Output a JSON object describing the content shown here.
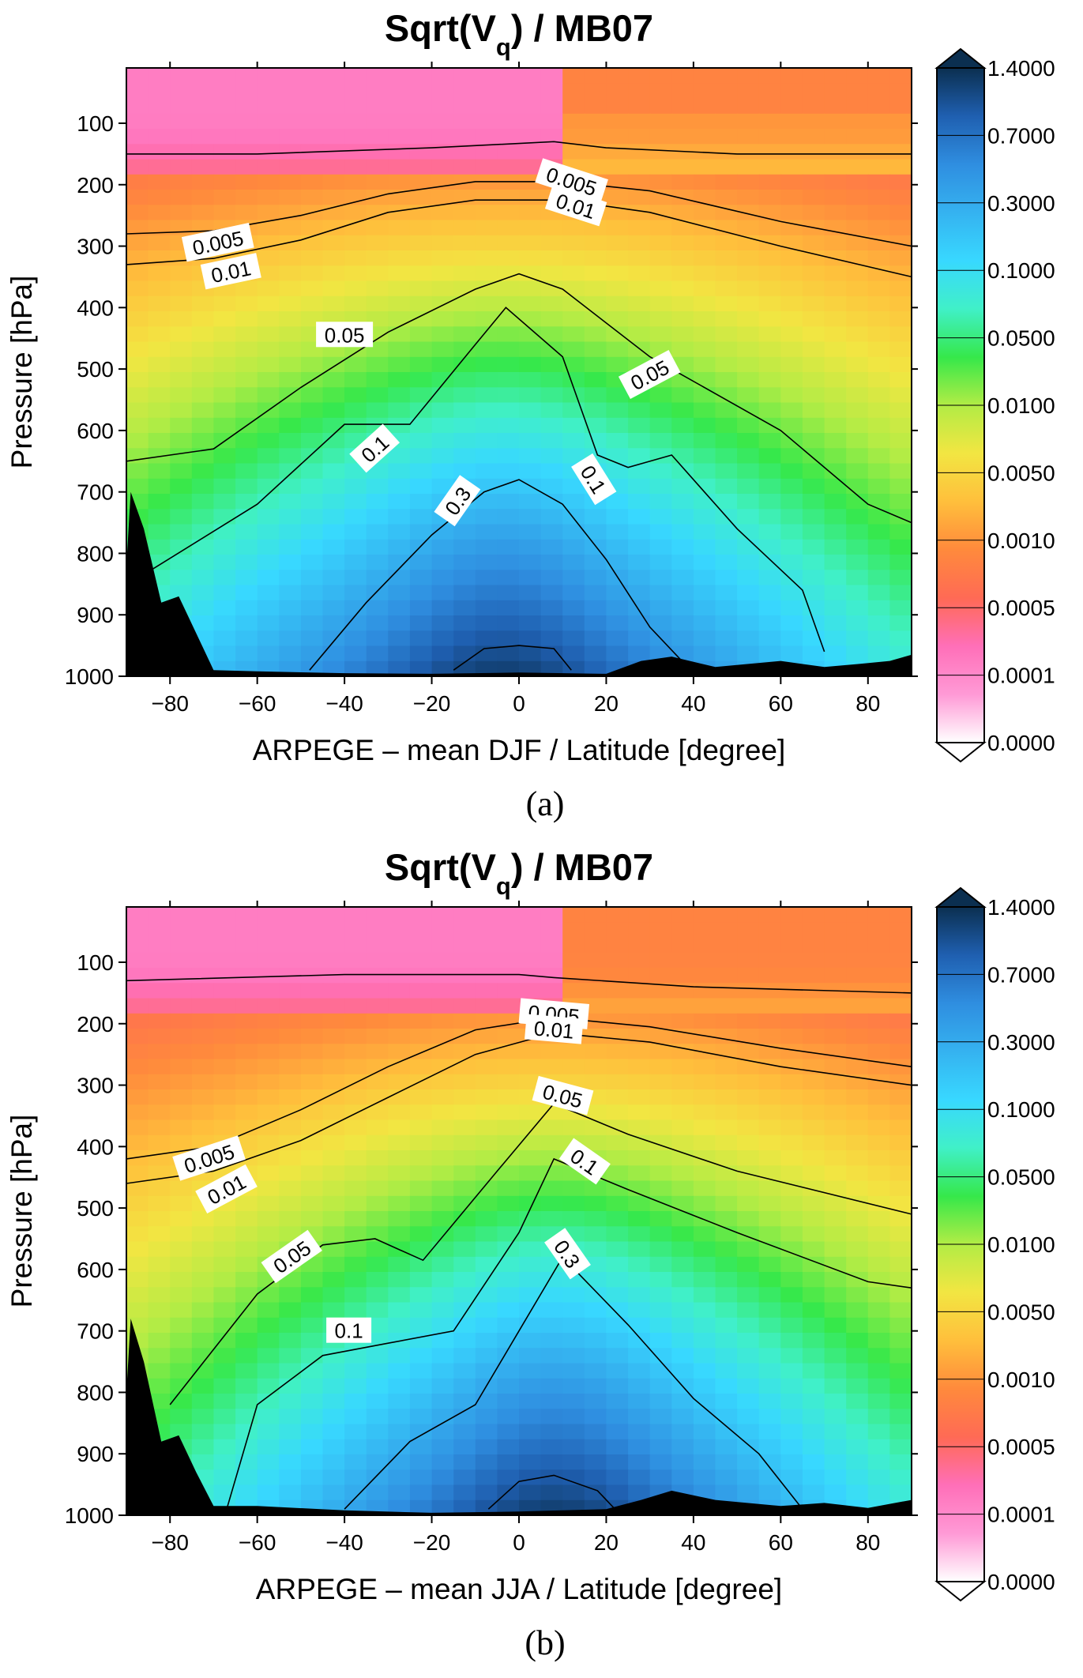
{
  "colors": {
    "scale": [
      "#ffffff",
      "#ff9ad6",
      "#ff6fb8",
      "#ff6a55",
      "#ff8a3c",
      "#ffbf3c",
      "#f2e642",
      "#b2ec45",
      "#36e84a",
      "#40f0c8",
      "#38d8ff",
      "#35b2f0",
      "#2f8ee0",
      "#1f5fb0",
      "#0b2f50"
    ],
    "terrain": "#000000",
    "contour": "#000000"
  },
  "chart_data": [
    {
      "id": "a",
      "type": "heatmap",
      "title_main": "Sqrt(V",
      "title_sub": "q",
      "title_tail": ") / MB07",
      "xlabel": "ARPEGE – mean DJF / Latitude [degree]",
      "ylabel": "Pressure [hPa]",
      "caption": "(a)",
      "xlim": [
        -90,
        90
      ],
      "ylim": [
        1000,
        10
      ],
      "x_ticks": [
        -80,
        -60,
        -40,
        -20,
        0,
        20,
        40,
        60,
        80
      ],
      "x_tick_labels": [
        "−80",
        "−60",
        "−40",
        "−20",
        "0",
        "20",
        "40",
        "60",
        "80"
      ],
      "y_ticks": [
        100,
        200,
        300,
        400,
        500,
        600,
        700,
        800,
        900,
        1000
      ],
      "y_tick_labels": [
        "100",
        "200",
        "300",
        "400",
        "500",
        "600",
        "700",
        "800",
        "900",
        "1000"
      ],
      "colorbar_levels": [
        "0.0000",
        "0.0001",
        "0.0005",
        "0.0010",
        "0.0050",
        "0.0100",
        "0.0500",
        "0.1000",
        "0.3000",
        "0.7000",
        "1.4000"
      ],
      "contour_labels": [
        {
          "text": "0.005",
          "lat": -69,
          "p": 295,
          "angle": -12
        },
        {
          "text": "0.01",
          "lat": -66,
          "p": 342,
          "angle": -12
        },
        {
          "text": "0.005",
          "lat": 12,
          "p": 195,
          "angle": 18
        },
        {
          "text": "0.01",
          "lat": 13,
          "p": 235,
          "angle": 18
        },
        {
          "text": "0.05",
          "lat": -40,
          "p": 445,
          "angle": 0
        },
        {
          "text": "0.05",
          "lat": 30,
          "p": 510,
          "angle": -28
        },
        {
          "text": "0.1",
          "lat": -33,
          "p": 630,
          "angle": -42
        },
        {
          "text": "0.1",
          "lat": 17,
          "p": 680,
          "angle": 58
        },
        {
          "text": "0.3",
          "lat": -14,
          "p": 715,
          "angle": -55
        }
      ]
    },
    {
      "id": "b",
      "type": "heatmap",
      "title_main": "Sqrt(V",
      "title_sub": "q",
      "title_tail": ") / MB07",
      "xlabel": "ARPEGE – mean JJA / Latitude [degree]",
      "ylabel": "Pressure [hPa]",
      "caption": "(b)",
      "xlim": [
        -90,
        90
      ],
      "ylim": [
        1000,
        10
      ],
      "x_ticks": [
        -80,
        -60,
        -40,
        -20,
        0,
        20,
        40,
        60,
        80
      ],
      "x_tick_labels": [
        "−80",
        "−60",
        "−40",
        "−20",
        "0",
        "20",
        "40",
        "60",
        "80"
      ],
      "y_ticks": [
        100,
        200,
        300,
        400,
        500,
        600,
        700,
        800,
        900,
        1000
      ],
      "y_tick_labels": [
        "100",
        "200",
        "300",
        "400",
        "500",
        "600",
        "700",
        "800",
        "900",
        "1000"
      ],
      "colorbar_levels": [
        "0.0000",
        "0.0001",
        "0.0005",
        "0.0010",
        "0.0050",
        "0.0100",
        "0.0500",
        "0.1000",
        "0.3000",
        "0.7000",
        "1.4000"
      ],
      "contour_labels": [
        {
          "text": "0.005",
          "lat": -71,
          "p": 420,
          "angle": -18
        },
        {
          "text": "0.01",
          "lat": -67,
          "p": 470,
          "angle": -28
        },
        {
          "text": "0.005",
          "lat": 8,
          "p": 185,
          "angle": 5
        },
        {
          "text": "0.01",
          "lat": 8,
          "p": 210,
          "angle": 5
        },
        {
          "text": "0.05",
          "lat": 10,
          "p": 318,
          "angle": 15
        },
        {
          "text": "0.05",
          "lat": -52,
          "p": 580,
          "angle": -35
        },
        {
          "text": "0.1",
          "lat": 15,
          "p": 425,
          "angle": 35
        },
        {
          "text": "0.1",
          "lat": -39,
          "p": 700,
          "angle": 0
        },
        {
          "text": "0.3",
          "lat": 11,
          "p": 575,
          "angle": 55
        }
      ]
    }
  ]
}
